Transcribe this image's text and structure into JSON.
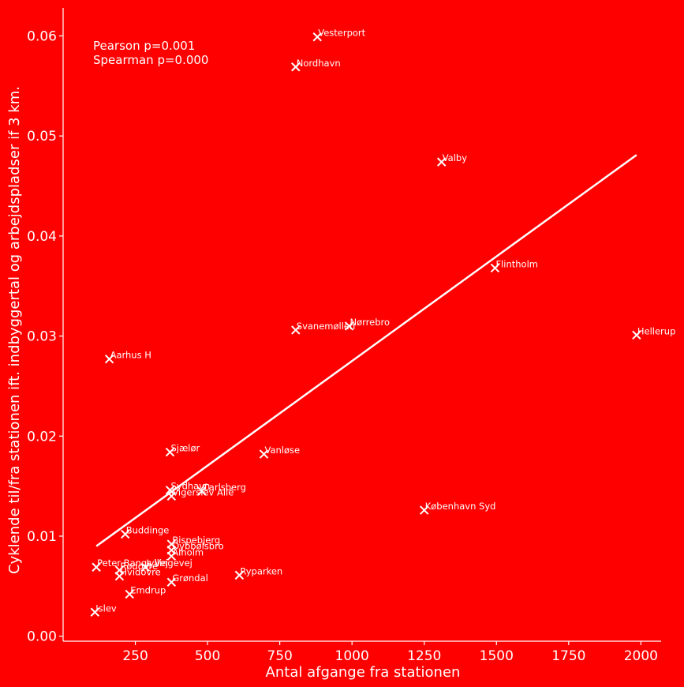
{
  "chart_data": {
    "type": "scatter",
    "xlabel": "Antal afgange fra stationen",
    "ylabel": "Cyklende til/fra stationen ift. indbyggertal og arbejdspladser if 3 km.",
    "xlim": [
      0,
      2070
    ],
    "ylim": [
      -0.0005,
      0.0628
    ],
    "xticks": [
      250,
      500,
      750,
      1000,
      1250,
      1500,
      1750,
      2000
    ],
    "xtick_labels": [
      "250",
      "500",
      "750",
      "1000",
      "1250",
      "1500",
      "1750",
      "2000"
    ],
    "yticks": [
      0.0,
      0.01,
      0.02,
      0.03,
      0.04,
      0.05,
      0.06
    ],
    "ytick_labels": [
      "0.00",
      "0.01",
      "0.02",
      "0.03",
      "0.04",
      "0.05",
      "0.06"
    ],
    "annotations": [
      "Pearson p=0.001",
      "Spearman p=0.000"
    ],
    "grid": false,
    "marker": "x",
    "points": [
      {
        "label": "Vesterport",
        "x": 880,
        "y": 0.0599
      },
      {
        "label": "Nordhavn",
        "x": 805,
        "y": 0.0569
      },
      {
        "label": "Valby",
        "x": 1310,
        "y": 0.0474
      },
      {
        "label": "Flintholm",
        "x": 1495,
        "y": 0.0368
      },
      {
        "label": "Nørrebro",
        "x": 990,
        "y": 0.031
      },
      {
        "label": "Svanemøllen",
        "x": 805,
        "y": 0.0306
      },
      {
        "label": "Hellerup",
        "x": 1985,
        "y": 0.0301
      },
      {
        "label": "Aarhus H",
        "x": 160,
        "y": 0.0277
      },
      {
        "label": "Sjælør",
        "x": 370,
        "y": 0.0184
      },
      {
        "label": "Vanløse",
        "x": 695,
        "y": 0.0182
      },
      {
        "label": "Sydhavn",
        "x": 370,
        "y": 0.0146
      },
      {
        "label": "Carlsberg",
        "x": 480,
        "y": 0.0145
      },
      {
        "label": "Vigerslev Allé",
        "x": 375,
        "y": 0.014
      },
      {
        "label": "København Syd",
        "x": 1250,
        "y": 0.0126
      },
      {
        "label": "Buddinge",
        "x": 215,
        "y": 0.0102
      },
      {
        "label": "Bispebjerg",
        "x": 375,
        "y": 0.0092
      },
      {
        "label": "Dybbølsbro",
        "x": 375,
        "y": 0.0086
      },
      {
        "label": "Ålholm",
        "x": 375,
        "y": 0.008
      },
      {
        "label": "Peter Bangs Vej",
        "x": 115,
        "y": 0.0069
      },
      {
        "label": "Rødovre",
        "x": 195,
        "y": 0.0066
      },
      {
        "label": "Hvidovre",
        "x": 195,
        "y": 0.006
      },
      {
        "label": "Ryparken",
        "x": 610,
        "y": 0.0061
      },
      {
        "label": "Grøndal",
        "x": 375,
        "y": 0.0054
      },
      {
        "label": "Emdrup",
        "x": 230,
        "y": 0.0042
      },
      {
        "label": "Islev",
        "x": 110,
        "y": 0.0024
      },
      {
        "label": "Jyllingevej",
        "x": 285,
        "y": 0.0069
      }
    ],
    "fit_line": {
      "x": [
        115,
        1985
      ],
      "y": [
        0.009,
        0.0481
      ]
    }
  }
}
